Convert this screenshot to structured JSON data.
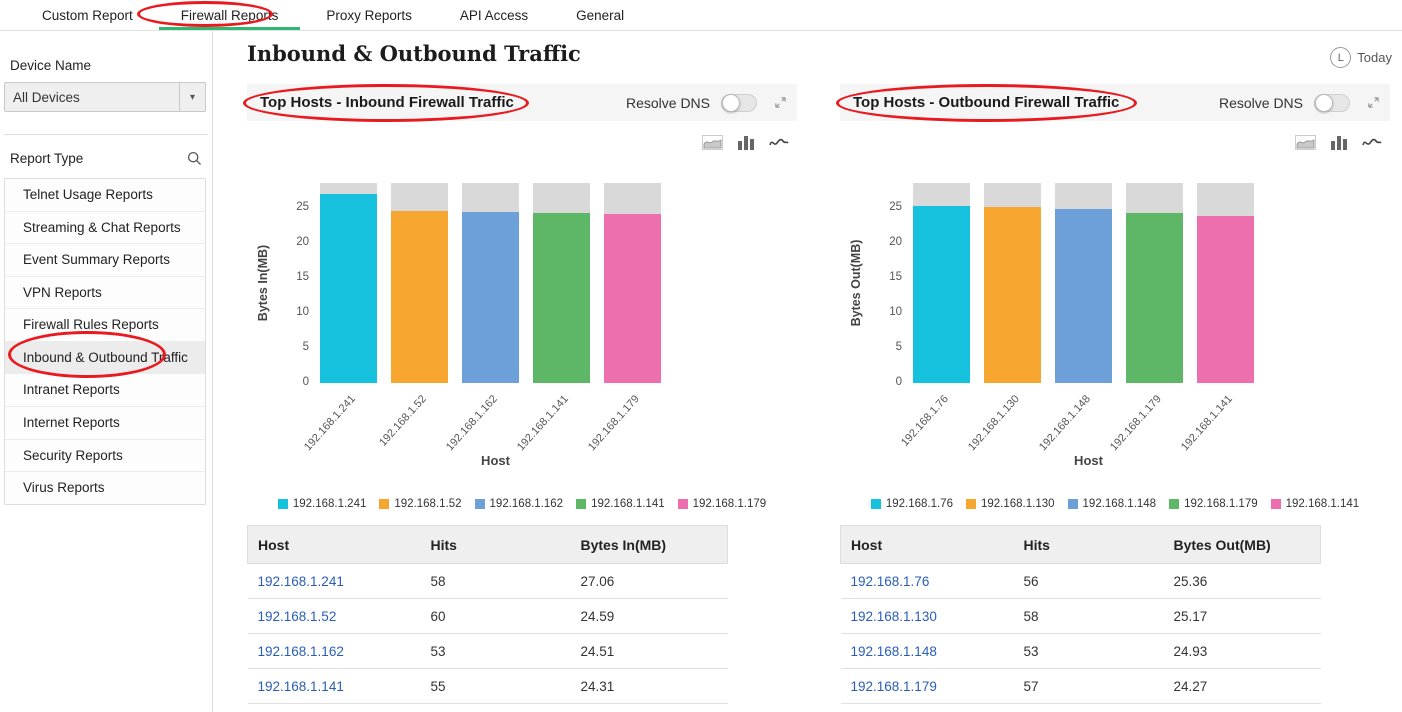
{
  "tabs": {
    "items": [
      {
        "label": "Custom Report",
        "active": false
      },
      {
        "label": "Firewall Reports",
        "active": true
      },
      {
        "label": "Proxy Reports",
        "active": false
      },
      {
        "label": "API Access",
        "active": false
      },
      {
        "label": "General",
        "active": false
      }
    ]
  },
  "sidebar": {
    "device_name_label": "Device Name",
    "device_select_value": "All Devices",
    "report_type_label": "Report Type",
    "report_types": [
      {
        "label": "Telnet Usage Reports",
        "selected": false
      },
      {
        "label": "Streaming & Chat Reports",
        "selected": false
      },
      {
        "label": "Event Summary Reports",
        "selected": false
      },
      {
        "label": "VPN Reports",
        "selected": false
      },
      {
        "label": "Firewall Rules Reports",
        "selected": false
      },
      {
        "label": "Inbound & Outbound Traffic",
        "selected": true
      },
      {
        "label": "Intranet Reports",
        "selected": false
      },
      {
        "label": "Internet Reports",
        "selected": false
      },
      {
        "label": "Security Reports",
        "selected": false
      },
      {
        "label": "Virus Reports",
        "selected": false
      }
    ]
  },
  "header": {
    "title": "Inbound & Outbound Traffic",
    "time_range_icon_letter": "L",
    "time_range_label": "Today"
  },
  "icons": {
    "device_select_caret": "chevron-down-icon",
    "report_type_search": "search-icon",
    "panel_expand": "expand-icon",
    "chart_types": [
      "area-chart-icon",
      "bar-chart-icon",
      "line-chart-icon"
    ]
  },
  "panels": [
    {
      "title": "Top Hosts - Inbound Firewall Traffic",
      "resolve_dns_label": "Resolve DNS",
      "table": {
        "headers": [
          "Host",
          "Hits",
          "Bytes In(MB)"
        ],
        "rows": [
          {
            "host": "192.168.1.241",
            "hits": "58",
            "bytes": "27.06"
          },
          {
            "host": "192.168.1.52",
            "hits": "60",
            "bytes": "24.59"
          },
          {
            "host": "192.168.1.162",
            "hits": "53",
            "bytes": "24.51"
          },
          {
            "host": "192.168.1.141",
            "hits": "55",
            "bytes": "24.31"
          }
        ]
      }
    },
    {
      "title": "Top Hosts - Outbound Firewall Traffic",
      "resolve_dns_label": "Resolve DNS",
      "table": {
        "headers": [
          "Host",
          "Hits",
          "Bytes Out(MB)"
        ],
        "rows": [
          {
            "host": "192.168.1.76",
            "hits": "56",
            "bytes": "25.36"
          },
          {
            "host": "192.168.1.130",
            "hits": "58",
            "bytes": "25.17"
          },
          {
            "host": "192.168.1.148",
            "hits": "53",
            "bytes": "24.93"
          },
          {
            "host": "192.168.1.179",
            "hits": "57",
            "bytes": "24.27"
          }
        ]
      }
    }
  ],
  "chart_data": [
    {
      "type": "bar",
      "title": "Top Hosts - Inbound Firewall Traffic",
      "categories": [
        "192.168.1.241",
        "192.168.1.52",
        "192.168.1.162",
        "192.168.1.141",
        "192.168.1.179"
      ],
      "values": [
        27.06,
        24.59,
        24.51,
        24.31,
        24.1
      ],
      "xlabel": "Host",
      "ylabel": "Bytes In(MB)",
      "yticks": [
        0,
        5,
        10,
        15,
        20,
        25
      ],
      "ylim": [
        0,
        28.6
      ],
      "stack_cap_total": 28.6,
      "remainder_color": "#d9d9d9",
      "bar_colors": [
        "#15c1dc",
        "#f7a72f",
        "#6d9fd8",
        "#5eb766",
        "#ee6fae"
      ],
      "legend": [
        "192.168.1.241",
        "192.168.1.52",
        "192.168.1.162",
        "192.168.1.141",
        "192.168.1.179"
      ],
      "legend_position": "bottom",
      "grid": false
    },
    {
      "type": "bar",
      "title": "Top Hosts - Outbound Firewall Traffic",
      "categories": [
        "192.168.1.76",
        "192.168.1.130",
        "192.168.1.148",
        "192.168.1.179",
        "192.168.1.141"
      ],
      "values": [
        25.36,
        25.17,
        24.93,
        24.27,
        23.9
      ],
      "xlabel": "Host",
      "ylabel": "Bytes Out(MB)",
      "yticks": [
        0,
        5,
        10,
        15,
        20,
        25
      ],
      "ylim": [
        0,
        28.6
      ],
      "stack_cap_total": 28.6,
      "remainder_color": "#d9d9d9",
      "bar_colors": [
        "#15c1dc",
        "#f7a72f",
        "#6d9fd8",
        "#5eb766",
        "#ee6fae"
      ],
      "legend": [
        "192.168.1.76",
        "192.168.1.130",
        "192.168.1.148",
        "192.168.1.179",
        "192.168.1.141"
      ],
      "legend_position": "bottom",
      "grid": false
    }
  ]
}
